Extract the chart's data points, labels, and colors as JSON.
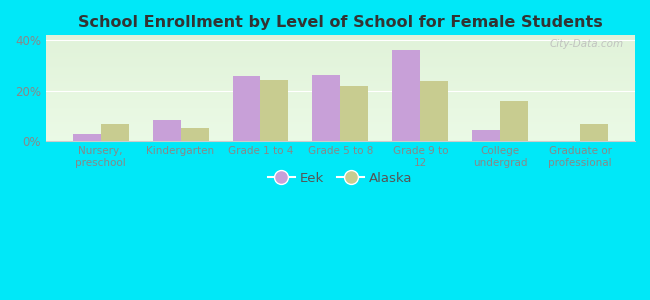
{
  "title": "School Enrollment by Level of School for Female Students",
  "categories": [
    "Nursery,\npreschool",
    "Kindergarten",
    "Grade 1 to 4",
    "Grade 5 to 8",
    "Grade 9 to\n12",
    "College\nundergrad",
    "Graduate or\nprofessional"
  ],
  "eek_values": [
    3.0,
    8.5,
    26.0,
    26.5,
    36.0,
    4.5,
    0.0
  ],
  "alaska_values": [
    7.0,
    5.5,
    24.5,
    22.0,
    24.0,
    16.0,
    7.0
  ],
  "eek_color": "#c8a0d8",
  "alaska_color": "#c8cc90",
  "ylim": [
    0,
    42
  ],
  "yticks": [
    0,
    20,
    40
  ],
  "ytick_labels": [
    "0%",
    "20%",
    "40%"
  ],
  "background_color": "#00e8f8",
  "bar_width": 0.35,
  "legend_labels": [
    "Eek",
    "Alaska"
  ],
  "watermark": "City-Data.com"
}
